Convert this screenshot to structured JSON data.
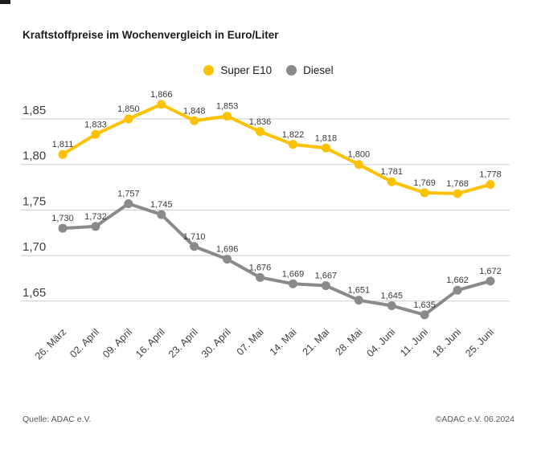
{
  "title": "Kraftstoffpreise im Wochenvergleich in Euro/Liter",
  "legend": {
    "items": [
      {
        "label": "Super E10",
        "color": "#fcc200"
      },
      {
        "label": "Diesel",
        "color": "#8a8a8a"
      }
    ]
  },
  "footer": {
    "source": "Quelle: ADAC e.V.",
    "copyright": "©ADAC e.V. 06.2024"
  },
  "colors": {
    "grid": "#cccccc",
    "axis_text": "#3d3d3d",
    "label_text": "#3a3a3a",
    "title_text": "#1d1d1b",
    "footer_text": "#575756"
  },
  "chart_data": {
    "type": "line",
    "title": "Kraftstoffpreise im Wochenvergleich in Euro/Liter",
    "ylabel": "Euro/Liter",
    "xlabel": "",
    "categories": [
      "26. März",
      "02. April",
      "09. April",
      "16. April",
      "23. April",
      "30. April",
      "07. Mai",
      "14. Mai",
      "21. Mai",
      "28. Mai",
      "04. Juni",
      "11. Juni",
      "18. Juni",
      "25. Juni"
    ],
    "series": [
      {
        "name": "Super E10",
        "color": "#fcc200",
        "values": [
          1.811,
          1.833,
          1.85,
          1.866,
          1.848,
          1.853,
          1.836,
          1.822,
          1.818,
          1.8,
          1.781,
          1.769,
          1.768,
          1.778
        ]
      },
      {
        "name": "Diesel",
        "color": "#8a8a8a",
        "values": [
          1.73,
          1.732,
          1.757,
          1.745,
          1.71,
          1.696,
          1.676,
          1.669,
          1.667,
          1.651,
          1.645,
          1.635,
          1.662,
          1.672
        ]
      }
    ],
    "yticks": [
      1.85,
      1.8,
      1.75,
      1.7,
      1.65
    ],
    "ylim": [
      1.62,
      1.88
    ],
    "decimal_separator": ",",
    "grid": true,
    "legend_position": "top-center",
    "data_labels": true
  }
}
